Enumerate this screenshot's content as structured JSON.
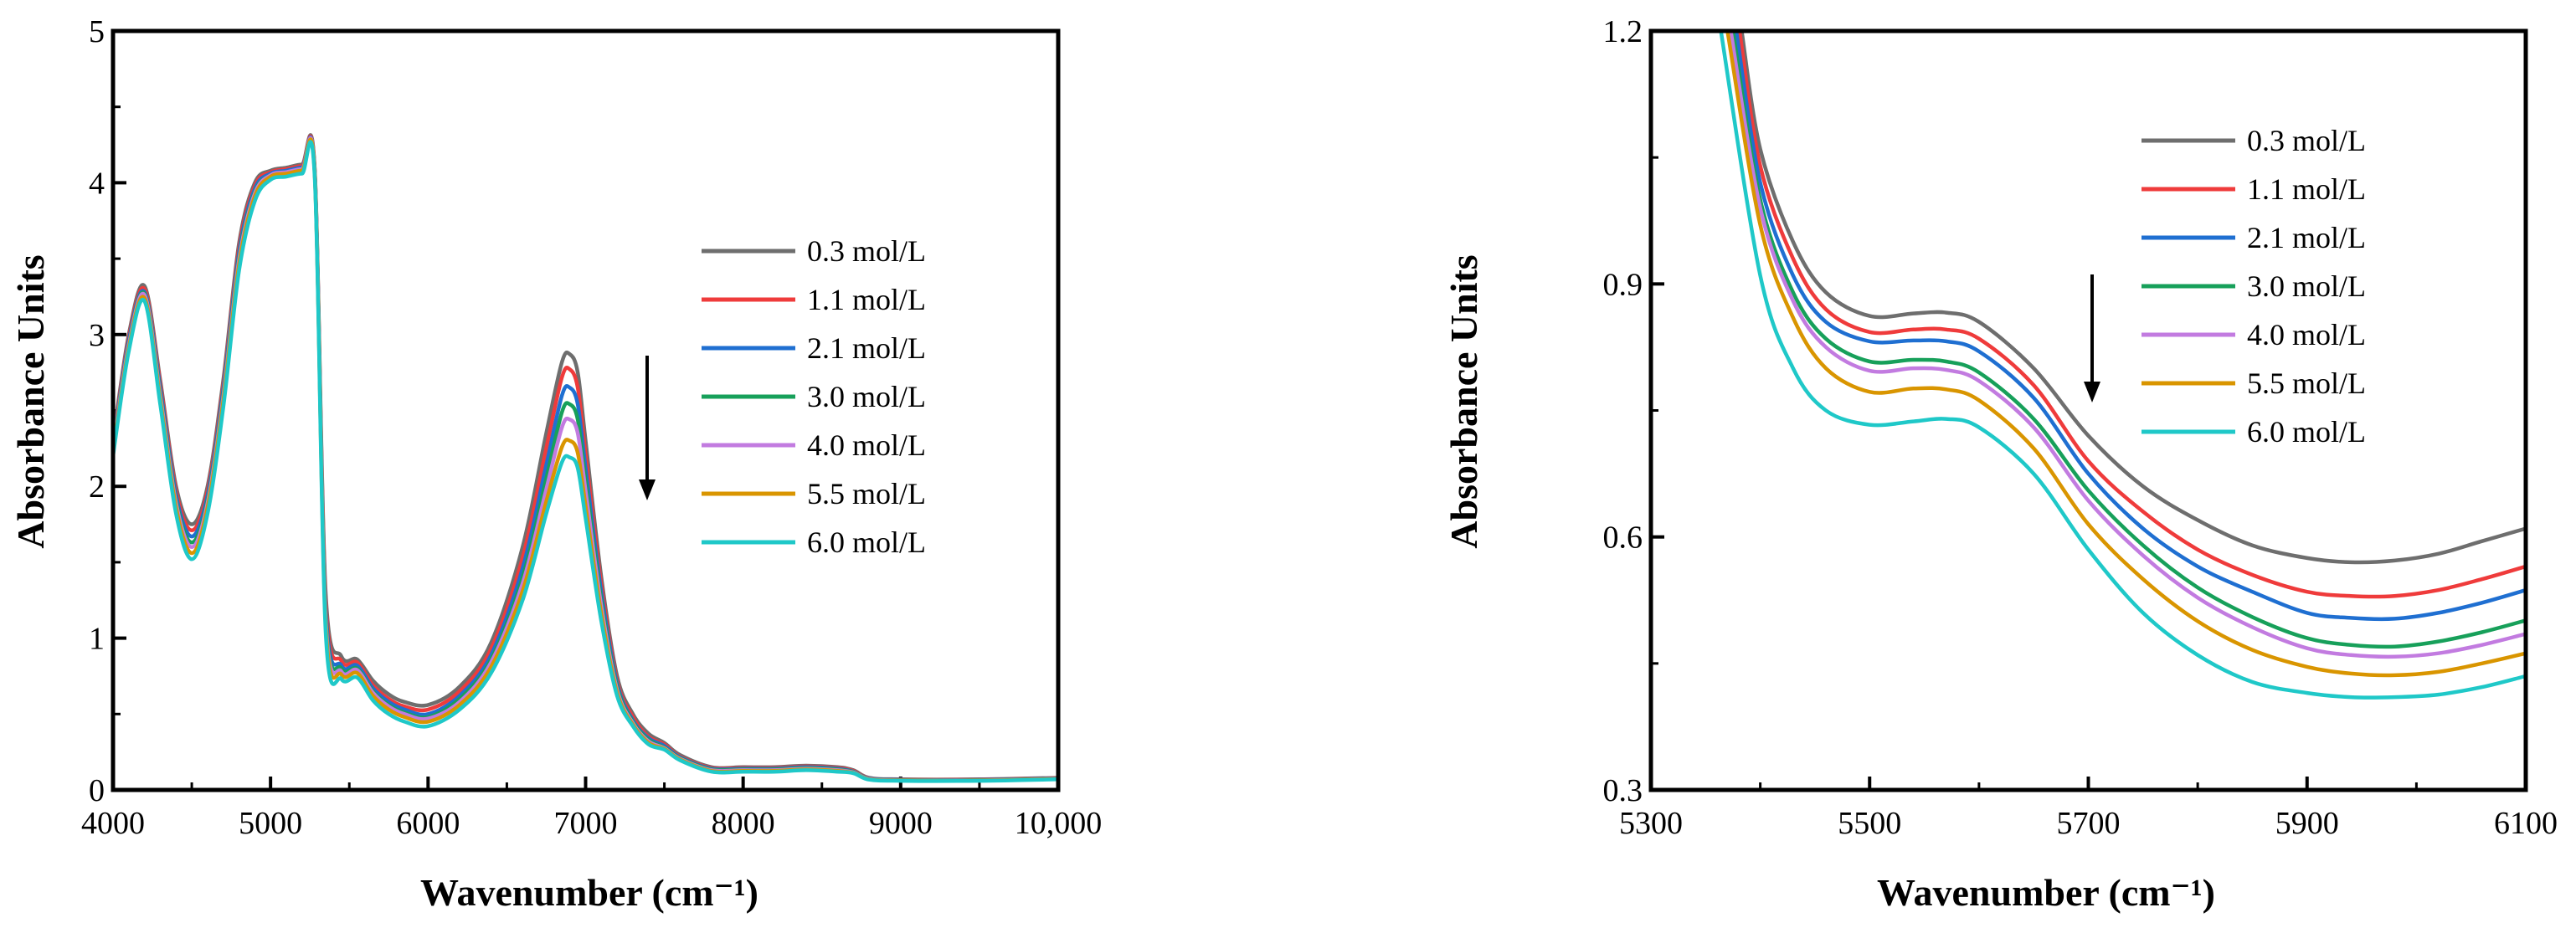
{
  "series_names": [
    "0.3 mol/L",
    "1.1 mol/L",
    "2.1 mol/L",
    "3.0 mol/L",
    "4.0 mol/L",
    "5.5 mol/L",
    "6.0 mol/L"
  ],
  "series_colors": [
    "#6e6e6e",
    "#ef3b3b",
    "#1f6fd1",
    "#17a05a",
    "#c27be0",
    "#d99500",
    "#1fc8c8"
  ],
  "chart_data": [
    {
      "type": "line",
      "title": "",
      "xlabel": "Wavenumber (cm⁻¹)",
      "ylabel": "Absorbance Units",
      "xlim": [
        4000,
        10000
      ],
      "ylim": [
        0,
        5
      ],
      "x_ticks": [
        4000,
        5000,
        6000,
        7000,
        8000,
        9000,
        10000
      ],
      "x_tick_labels": [
        "4000",
        "5000",
        "6000",
        "7000",
        "8000",
        "9000",
        "10,000"
      ],
      "y_ticks": [
        0,
        1,
        2,
        3,
        4,
        5
      ],
      "y_tick_labels": [
        "0",
        "1",
        "2",
        "3",
        "4",
        "5"
      ],
      "legend_position": "center-right",
      "annotation": "downward arrow near 7400 cm⁻¹ indicating decreasing absorbance with concentration",
      "series": [
        {
          "name": "0.3 mol/L",
          "x": [
            4000,
            4100,
            4200,
            4300,
            4400,
            4500,
            4600,
            4700,
            4800,
            4900,
            5000,
            5100,
            5200,
            5280,
            5350,
            5450,
            5550,
            5650,
            5750,
            5850,
            6000,
            6200,
            6400,
            6600,
            6750,
            6850,
            6900,
            6950,
            7000,
            7100,
            7200,
            7300,
            7400,
            7500,
            7600,
            7800,
            8000,
            8200,
            8400,
            8600,
            8700,
            8800,
            9000,
            9500,
            10000
          ],
          "y": [
            2.3,
            3.0,
            3.32,
            2.7,
            2.0,
            1.75,
            2.0,
            2.7,
            3.6,
            4.0,
            4.08,
            4.1,
            4.12,
            4.1,
            1.3,
            0.88,
            0.86,
            0.72,
            0.63,
            0.58,
            0.56,
            0.68,
            0.97,
            1.6,
            2.35,
            2.82,
            2.87,
            2.75,
            2.3,
            1.4,
            0.75,
            0.5,
            0.37,
            0.31,
            0.23,
            0.15,
            0.15,
            0.15,
            0.16,
            0.15,
            0.13,
            0.08,
            0.07,
            0.07,
            0.08
          ]
        },
        {
          "name": "1.1 mol/L",
          "x": [
            4000,
            4100,
            4200,
            4300,
            4400,
            4500,
            4600,
            4700,
            4800,
            4900,
            5000,
            5100,
            5200,
            5280,
            5350,
            5450,
            5550,
            5650,
            5750,
            5850,
            6000,
            6200,
            6400,
            6600,
            6750,
            6850,
            6900,
            6950,
            7000,
            7100,
            7200,
            7300,
            7400,
            7500,
            7600,
            7800,
            8000,
            8200,
            8400,
            8600,
            8700,
            8800,
            9000,
            9500,
            10000
          ],
          "y": [
            2.28,
            2.98,
            3.3,
            2.68,
            1.97,
            1.71,
            1.97,
            2.67,
            3.57,
            3.98,
            4.07,
            4.09,
            4.11,
            4.09,
            1.25,
            0.85,
            0.84,
            0.69,
            0.6,
            0.55,
            0.53,
            0.65,
            0.93,
            1.53,
            2.25,
            2.72,
            2.77,
            2.65,
            2.21,
            1.35,
            0.72,
            0.48,
            0.35,
            0.3,
            0.22,
            0.145,
            0.145,
            0.145,
            0.155,
            0.145,
            0.125,
            0.078,
            0.068,
            0.068,
            0.078
          ]
        },
        {
          "name": "2.1 mol/L",
          "x": [
            4000,
            4100,
            4200,
            4300,
            4400,
            4500,
            4600,
            4700,
            4800,
            4900,
            5000,
            5100,
            5200,
            5280,
            5350,
            5450,
            5550,
            5650,
            5750,
            5850,
            6000,
            6200,
            6400,
            6600,
            6750,
            6850,
            6900,
            6950,
            7000,
            7100,
            7200,
            7300,
            7400,
            7500,
            7600,
            7800,
            8000,
            8200,
            8400,
            8600,
            8700,
            8800,
            9000,
            9500,
            10000
          ],
          "y": [
            2.26,
            2.96,
            3.28,
            2.65,
            1.94,
            1.67,
            1.94,
            2.64,
            3.54,
            3.96,
            4.06,
            4.08,
            4.1,
            4.08,
            1.2,
            0.82,
            0.82,
            0.67,
            0.58,
            0.53,
            0.5,
            0.62,
            0.89,
            1.46,
            2.14,
            2.6,
            2.65,
            2.54,
            2.12,
            1.3,
            0.7,
            0.46,
            0.34,
            0.29,
            0.215,
            0.14,
            0.14,
            0.14,
            0.15,
            0.14,
            0.12,
            0.076,
            0.066,
            0.066,
            0.076
          ]
        },
        {
          "name": "3.0 mol/L",
          "x": [
            4000,
            4100,
            4200,
            4300,
            4400,
            4500,
            4600,
            4700,
            4800,
            4900,
            5000,
            5100,
            5200,
            5280,
            5350,
            5450,
            5550,
            5650,
            5750,
            5850,
            6000,
            6200,
            6400,
            6600,
            6750,
            6850,
            6900,
            6950,
            7000,
            7100,
            7200,
            7300,
            7400,
            7500,
            7600,
            7800,
            8000,
            8200,
            8400,
            8600,
            8700,
            8800,
            9000,
            9500,
            10000
          ],
          "y": [
            2.25,
            2.94,
            3.27,
            2.62,
            1.91,
            1.63,
            1.91,
            2.61,
            3.51,
            3.94,
            4.05,
            4.07,
            4.09,
            4.07,
            1.16,
            0.8,
            0.8,
            0.65,
            0.56,
            0.51,
            0.48,
            0.6,
            0.86,
            1.4,
            2.05,
            2.49,
            2.54,
            2.44,
            2.04,
            1.25,
            0.68,
            0.45,
            0.33,
            0.28,
            0.21,
            0.135,
            0.135,
            0.135,
            0.145,
            0.135,
            0.118,
            0.074,
            0.064,
            0.064,
            0.074
          ]
        },
        {
          "name": "4.0 mol/L",
          "x": [
            4000,
            4100,
            4200,
            4300,
            4400,
            4500,
            4600,
            4700,
            4800,
            4900,
            5000,
            5100,
            5200,
            5280,
            5350,
            5450,
            5550,
            5650,
            5750,
            5850,
            6000,
            6200,
            6400,
            6600,
            6750,
            6850,
            6900,
            6950,
            7000,
            7100,
            7200,
            7300,
            7400,
            7500,
            7600,
            7800,
            8000,
            8200,
            8400,
            8600,
            8700,
            8800,
            9000,
            9500,
            10000
          ],
          "y": [
            2.24,
            2.93,
            3.26,
            2.6,
            1.89,
            1.6,
            1.89,
            2.59,
            3.49,
            3.93,
            4.05,
            4.07,
            4.09,
            4.07,
            1.13,
            0.78,
            0.79,
            0.64,
            0.55,
            0.5,
            0.47,
            0.58,
            0.84,
            1.36,
            1.98,
            2.39,
            2.44,
            2.35,
            1.97,
            1.21,
            0.66,
            0.44,
            0.32,
            0.275,
            0.205,
            0.13,
            0.13,
            0.13,
            0.14,
            0.13,
            0.115,
            0.072,
            0.063,
            0.063,
            0.073
          ]
        },
        {
          "name": "5.5 mol/L",
          "x": [
            4000,
            4100,
            4200,
            4300,
            4400,
            4500,
            4600,
            4700,
            4800,
            4900,
            5000,
            5100,
            5200,
            5280,
            5350,
            5450,
            5550,
            5650,
            5750,
            5850,
            6000,
            6200,
            6400,
            6600,
            6750,
            6850,
            6900,
            6950,
            7000,
            7100,
            7200,
            7300,
            7400,
            7500,
            7600,
            7800,
            8000,
            8200,
            8400,
            8600,
            8700,
            8800,
            9000,
            9500,
            10000
          ],
          "y": [
            2.22,
            2.91,
            3.24,
            2.57,
            1.86,
            1.56,
            1.86,
            2.56,
            3.46,
            3.91,
            4.04,
            4.06,
            4.08,
            4.06,
            1.09,
            0.76,
            0.77,
            0.62,
            0.53,
            0.48,
            0.45,
            0.56,
            0.81,
            1.31,
            1.9,
            2.26,
            2.3,
            2.22,
            1.87,
            1.16,
            0.64,
            0.43,
            0.31,
            0.27,
            0.2,
            0.125,
            0.125,
            0.125,
            0.135,
            0.125,
            0.112,
            0.07,
            0.062,
            0.062,
            0.072
          ]
        },
        {
          "name": "6.0 mol/L",
          "x": [
            4000,
            4100,
            4200,
            4300,
            4400,
            4500,
            4600,
            4700,
            4800,
            4900,
            5000,
            5100,
            5200,
            5280,
            5350,
            5450,
            5550,
            5650,
            5750,
            5850,
            6000,
            6200,
            6400,
            6600,
            6750,
            6850,
            6900,
            6950,
            7000,
            7100,
            7200,
            7300,
            7400,
            7500,
            7600,
            7800,
            8000,
            8200,
            8400,
            8600,
            8700,
            8800,
            9000,
            9500,
            10000
          ],
          "y": [
            2.2,
            2.89,
            3.22,
            2.54,
            1.82,
            1.52,
            1.82,
            2.52,
            3.42,
            3.88,
            4.02,
            4.04,
            4.06,
            4.04,
            1.04,
            0.73,
            0.74,
            0.59,
            0.5,
            0.45,
            0.42,
            0.53,
            0.77,
            1.25,
            1.82,
            2.16,
            2.19,
            2.12,
            1.79,
            1.11,
            0.62,
            0.42,
            0.3,
            0.265,
            0.195,
            0.12,
            0.12,
            0.12,
            0.13,
            0.12,
            0.11,
            0.068,
            0.06,
            0.06,
            0.07
          ]
        }
      ]
    },
    {
      "type": "line",
      "title": "",
      "xlabel": "Wavenumber (cm⁻¹)",
      "ylabel": "Absorbance Units",
      "xlim": [
        5300,
        6100
      ],
      "ylim": [
        0.3,
        1.2
      ],
      "x_ticks": [
        5300,
        5500,
        5700,
        5900,
        6100
      ],
      "x_tick_labels": [
        "5300",
        "5500",
        "5700",
        "5900",
        "6100"
      ],
      "y_ticks": [
        0.3,
        0.6,
        0.9,
        1.2
      ],
      "y_tick_labels": [
        "0.3",
        "0.6",
        "0.9",
        "1.2"
      ],
      "legend_position": "top-right",
      "annotation": "downward arrow near 5730 cm⁻¹ indicating decreasing absorbance with concentration",
      "series": [
        {
          "name": "0.3 mol/L",
          "x": [
            5383,
            5400,
            5430,
            5460,
            5500,
            5540,
            5570,
            5600,
            5650,
            5700,
            5750,
            5800,
            5850,
            5900,
            5940,
            5980,
            6020,
            6060,
            6100
          ],
          "y": [
            1.2,
            1.06,
            0.95,
            0.89,
            0.862,
            0.865,
            0.866,
            0.855,
            0.8,
            0.72,
            0.66,
            0.62,
            0.59,
            0.575,
            0.57,
            0.572,
            0.58,
            0.595,
            0.61
          ]
        },
        {
          "name": "1.1 mol/L",
          "x": [
            5381,
            5400,
            5430,
            5460,
            5500,
            5540,
            5570,
            5600,
            5650,
            5700,
            5750,
            5800,
            5850,
            5900,
            5940,
            5980,
            6020,
            6060,
            6100
          ],
          "y": [
            1.2,
            1.04,
            0.93,
            0.87,
            0.843,
            0.846,
            0.846,
            0.835,
            0.78,
            0.69,
            0.63,
            0.585,
            0.555,
            0.535,
            0.53,
            0.53,
            0.537,
            0.55,
            0.565
          ]
        },
        {
          "name": "2.1 mol/L",
          "x": [
            5378,
            5400,
            5430,
            5460,
            5500,
            5540,
            5570,
            5600,
            5650,
            5700,
            5750,
            5800,
            5850,
            5900,
            5940,
            5980,
            6020,
            6060,
            6100
          ],
          "y": [
            1.2,
            1.02,
            0.91,
            0.855,
            0.832,
            0.833,
            0.832,
            0.82,
            0.765,
            0.675,
            0.61,
            0.565,
            0.535,
            0.51,
            0.504,
            0.503,
            0.51,
            0.522,
            0.537
          ]
        },
        {
          "name": "3.0 mol/L",
          "x": [
            5375,
            5400,
            5430,
            5460,
            5500,
            5540,
            5570,
            5600,
            5650,
            5700,
            5750,
            5800,
            5850,
            5900,
            5940,
            5980,
            6020,
            6060,
            6100
          ],
          "y": [
            1.2,
            1.0,
            0.89,
            0.835,
            0.808,
            0.81,
            0.808,
            0.795,
            0.74,
            0.655,
            0.59,
            0.54,
            0.505,
            0.48,
            0.472,
            0.47,
            0.476,
            0.487,
            0.501
          ]
        },
        {
          "name": "4.0 mol/L",
          "x": [
            5373,
            5400,
            5430,
            5460,
            5500,
            5540,
            5570,
            5600,
            5650,
            5700,
            5750,
            5800,
            5850,
            5900,
            5940,
            5980,
            6020,
            6060,
            6100
          ],
          "y": [
            1.2,
            0.99,
            0.88,
            0.825,
            0.797,
            0.8,
            0.798,
            0.785,
            0.73,
            0.643,
            0.578,
            0.528,
            0.493,
            0.468,
            0.46,
            0.458,
            0.462,
            0.472,
            0.485
          ]
        },
        {
          "name": "5.5 mol/L",
          "x": [
            5370,
            5400,
            5430,
            5460,
            5500,
            5540,
            5570,
            5600,
            5650,
            5700,
            5750,
            5800,
            5850,
            5900,
            5940,
            5980,
            6020,
            6060,
            6100
          ],
          "y": [
            1.2,
            0.97,
            0.86,
            0.8,
            0.772,
            0.776,
            0.775,
            0.762,
            0.705,
            0.615,
            0.55,
            0.5,
            0.466,
            0.446,
            0.438,
            0.436,
            0.44,
            0.45,
            0.462
          ]
        },
        {
          "name": "6.0 mol/L",
          "x": [
            5364,
            5400,
            5430,
            5460,
            5500,
            5540,
            5570,
            5600,
            5650,
            5700,
            5750,
            5800,
            5850,
            5900,
            5940,
            5980,
            6020,
            6060,
            6100
          ],
          "y": [
            1.2,
            0.91,
            0.8,
            0.75,
            0.733,
            0.737,
            0.74,
            0.73,
            0.675,
            0.585,
            0.51,
            0.46,
            0.428,
            0.415,
            0.41,
            0.41,
            0.413,
            0.422,
            0.435
          ]
        }
      ]
    }
  ]
}
